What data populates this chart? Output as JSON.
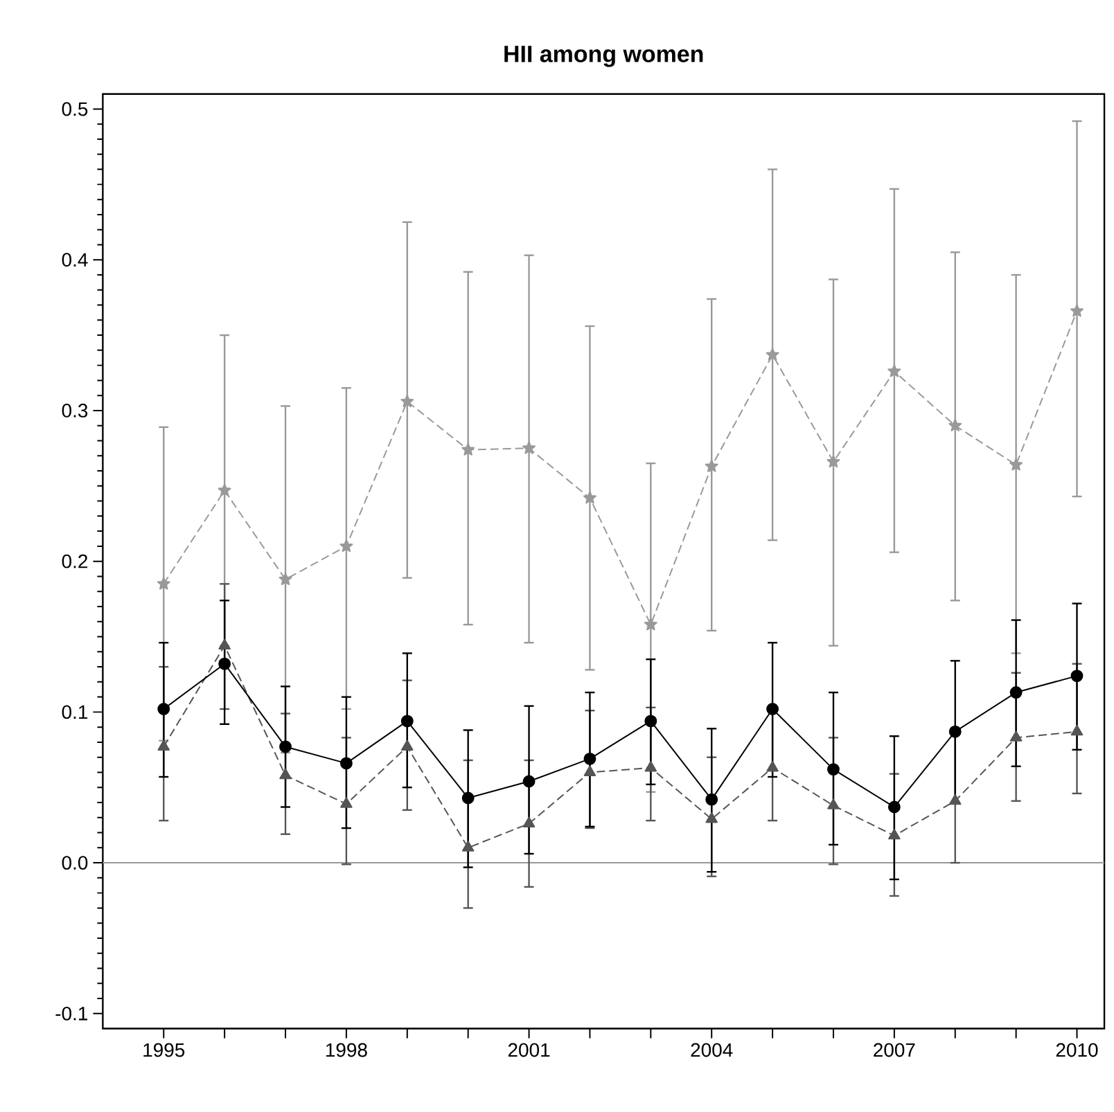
{
  "chart_data": {
    "type": "line",
    "title": "HII among women",
    "x": [
      1995,
      1996,
      1997,
      1998,
      1999,
      2000,
      2001,
      2002,
      2003,
      2004,
      2005,
      2006,
      2007,
      2008,
      2009,
      2010
    ],
    "series": [
      {
        "color": "#999999",
        "marker": "star",
        "line_style": "dashed",
        "values": [
          0.185,
          0.247,
          0.188,
          0.21,
          0.306,
          0.274,
          0.275,
          0.242,
          0.158,
          0.263,
          0.337,
          0.266,
          0.326,
          0.29,
          0.264,
          0.366
        ],
        "errors": [
          [
            0.081,
            0.289
          ],
          [
            0.144,
            0.35
          ],
          [
            0.073,
            0.303
          ],
          [
            0.102,
            0.315
          ],
          [
            0.189,
            0.425
          ],
          [
            0.158,
            0.392
          ],
          [
            0.146,
            0.403
          ],
          [
            0.128,
            0.356
          ],
          [
            0.047,
            0.265
          ],
          [
            0.154,
            0.374
          ],
          [
            0.214,
            0.46
          ],
          [
            0.144,
            0.387
          ],
          [
            0.206,
            0.447
          ],
          [
            0.174,
            0.405
          ],
          [
            0.139,
            0.39
          ],
          [
            0.243,
            0.492
          ]
        ]
      },
      {
        "color": "#555555",
        "marker": "triangle",
        "line_style": "dashed",
        "values": [
          0.077,
          0.144,
          0.058,
          0.039,
          0.077,
          0.01,
          0.026,
          0.06,
          0.063,
          0.029,
          0.063,
          0.038,
          0.018,
          0.041,
          0.083,
          0.087
        ],
        "errors": [
          [
            0.028,
            0.13
          ],
          [
            0.102,
            0.185
          ],
          [
            0.019,
            0.099
          ],
          [
            -0.001,
            0.083
          ],
          [
            0.035,
            0.121
          ],
          [
            -0.03,
            0.068
          ],
          [
            -0.016,
            0.068
          ],
          [
            0.023,
            0.101
          ],
          [
            0.028,
            0.103
          ],
          [
            -0.009,
            0.07
          ],
          [
            0.028,
            0.104
          ],
          [
            -0.001,
            0.083
          ],
          [
            -0.022,
            0.059
          ],
          [
            0.0,
            0.086
          ],
          [
            0.041,
            0.126
          ],
          [
            0.046,
            0.132
          ]
        ]
      },
      {
        "color": "#000000",
        "marker": "circle",
        "line_style": "solid",
        "values": [
          0.102,
          0.132,
          0.077,
          0.066,
          0.094,
          0.043,
          0.054,
          0.069,
          0.094,
          0.042,
          0.102,
          0.062,
          0.037,
          0.087,
          0.113,
          0.124
        ],
        "errors": [
          [
            0.057,
            0.146
          ],
          [
            0.092,
            0.174
          ],
          [
            0.037,
            0.117
          ],
          [
            0.023,
            0.11
          ],
          [
            0.05,
            0.139
          ],
          [
            -0.003,
            0.088
          ],
          [
            0.006,
            0.104
          ],
          [
            0.024,
            0.113
          ],
          [
            0.052,
            0.135
          ],
          [
            -0.006,
            0.089
          ],
          [
            0.057,
            0.146
          ],
          [
            0.012,
            0.113
          ],
          [
            -0.011,
            0.084
          ],
          [
            0.04,
            0.134
          ],
          [
            0.064,
            0.161
          ],
          [
            0.075,
            0.172
          ]
        ]
      }
    ],
    "xlim": [
      1994,
      2010.45
    ],
    "ylim": [
      -0.11,
      0.51
    ],
    "xticks": [
      1995,
      {
        "value": 1996,
        "label": null
      },
      {
        "value": 1997,
        "label": null
      },
      1998,
      {
        "value": 1999,
        "label": null
      },
      {
        "value": 2000,
        "label": null
      },
      2001,
      {
        "value": 2002,
        "label": null
      },
      {
        "value": 2003,
        "label": null
      },
      2004,
      {
        "value": 2005,
        "label": null
      },
      {
        "value": 2006,
        "label": null
      },
      2007,
      {
        "value": 2008,
        "label": null
      },
      {
        "value": 2009,
        "label": null
      },
      2010
    ],
    "yticks": [
      -0.1,
      {
        "value": 0,
        "label": "0.0"
      },
      0.1,
      0.2,
      0.3,
      0.4,
      0.5
    ],
    "ref_lines": [
      {
        "axis": "y",
        "value": 0,
        "color": "#999999"
      }
    ],
    "grid": false
  }
}
